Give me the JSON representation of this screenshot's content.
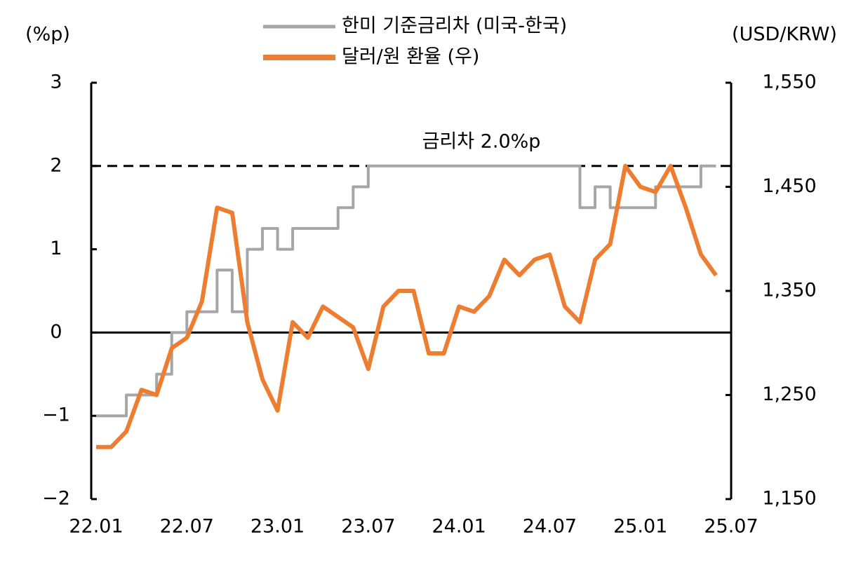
{
  "chart_data": {
    "type": "line",
    "y_label": "(%p)",
    "y2_label": "(USD/KRW)",
    "x": [
      "22.01",
      "22.02",
      "22.03",
      "22.04",
      "22.05",
      "22.06",
      "22.07",
      "22.08",
      "22.09",
      "22.10",
      "22.11",
      "22.12",
      "23.01",
      "23.02",
      "23.03",
      "23.04",
      "23.05",
      "23.06",
      "23.07",
      "23.08",
      "23.09",
      "23.10",
      "23.11",
      "23.12",
      "24.01",
      "24.02",
      "24.03",
      "24.04",
      "24.05",
      "24.06",
      "24.07",
      "24.08",
      "24.09",
      "24.10",
      "24.11",
      "24.12",
      "25.01",
      "25.02",
      "25.03",
      "25.04",
      "25.05",
      "25.06",
      "25.07"
    ],
    "xticks": [
      "22.01",
      "22.07",
      "23.01",
      "23.07",
      "24.01",
      "24.07",
      "25.01",
      "25.07"
    ],
    "series": [
      {
        "name": "한미 기준금리차 (미국-한국)",
        "color": "#a6a6a6",
        "step": true,
        "values": [
          -1.0,
          -1.0,
          -0.75,
          -0.75,
          -0.5,
          0.0,
          0.25,
          0.25,
          0.75,
          0.25,
          1.0,
          1.25,
          1.0,
          1.25,
          1.25,
          1.25,
          1.5,
          1.75,
          2.0,
          2.0,
          2.0,
          2.0,
          2.0,
          2.0,
          2.0,
          2.0,
          2.0,
          2.0,
          2.0,
          2.0,
          2.0,
          2.0,
          1.5,
          1.75,
          1.5,
          1.5,
          1.5,
          1.75,
          1.75,
          1.75,
          2.0,
          2.0,
          null
        ]
      },
      {
        "name": "달러/원 환율 (우)",
        "color": "#ed7d31",
        "axis": "y2",
        "values": [
          1200,
          1200,
          1215,
          1255,
          1250,
          1295,
          1305,
          1340,
          1430,
          1425,
          1320,
          1265,
          1235,
          1320,
          1305,
          1335,
          1325,
          1315,
          1275,
          1335,
          1350,
          1350,
          1290,
          1290,
          1335,
          1330,
          1345,
          1380,
          1365,
          1380,
          1385,
          1335,
          1320,
          1380,
          1395,
          1470,
          1450,
          1445,
          1470,
          1430,
          1385,
          1365,
          null
        ]
      }
    ],
    "ylim": [
      -2,
      3
    ],
    "yticks": [
      {
        "value": -2,
        "label": "−2"
      },
      {
        "value": -1,
        "label": "−1"
      },
      0,
      1,
      2,
      3
    ],
    "y2lim": [
      1150,
      1550
    ],
    "y2ticks": [
      {
        "value": 1150,
        "label": "1,150"
      },
      {
        "value": 1250,
        "label": "1,250"
      },
      {
        "value": 1350,
        "label": "1,350"
      },
      {
        "value": 1450,
        "label": "1,450"
      },
      {
        "value": 1550,
        "label": "1,550"
      }
    ],
    "reference_line": {
      "value": 2,
      "label": "금리차 2.0%p"
    },
    "zero_line": 0,
    "legend": "top"
  }
}
